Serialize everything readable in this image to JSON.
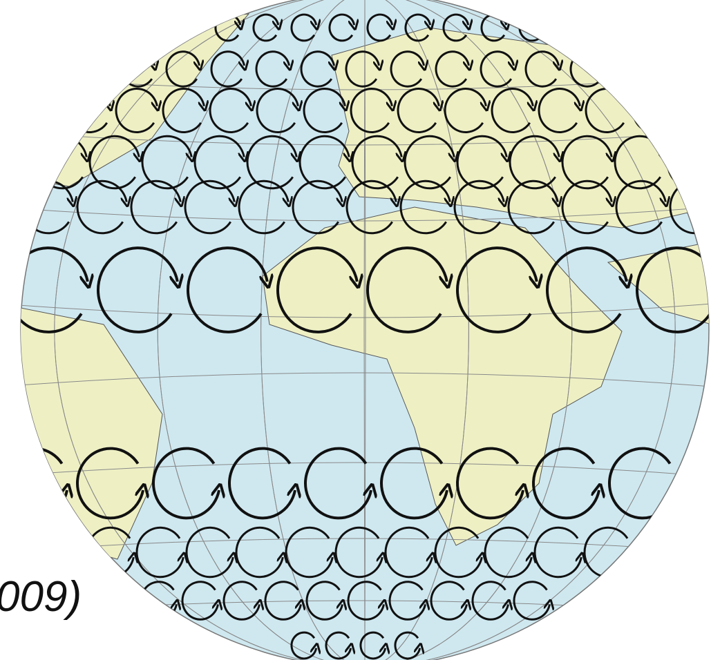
{
  "caption": "009)"
}
